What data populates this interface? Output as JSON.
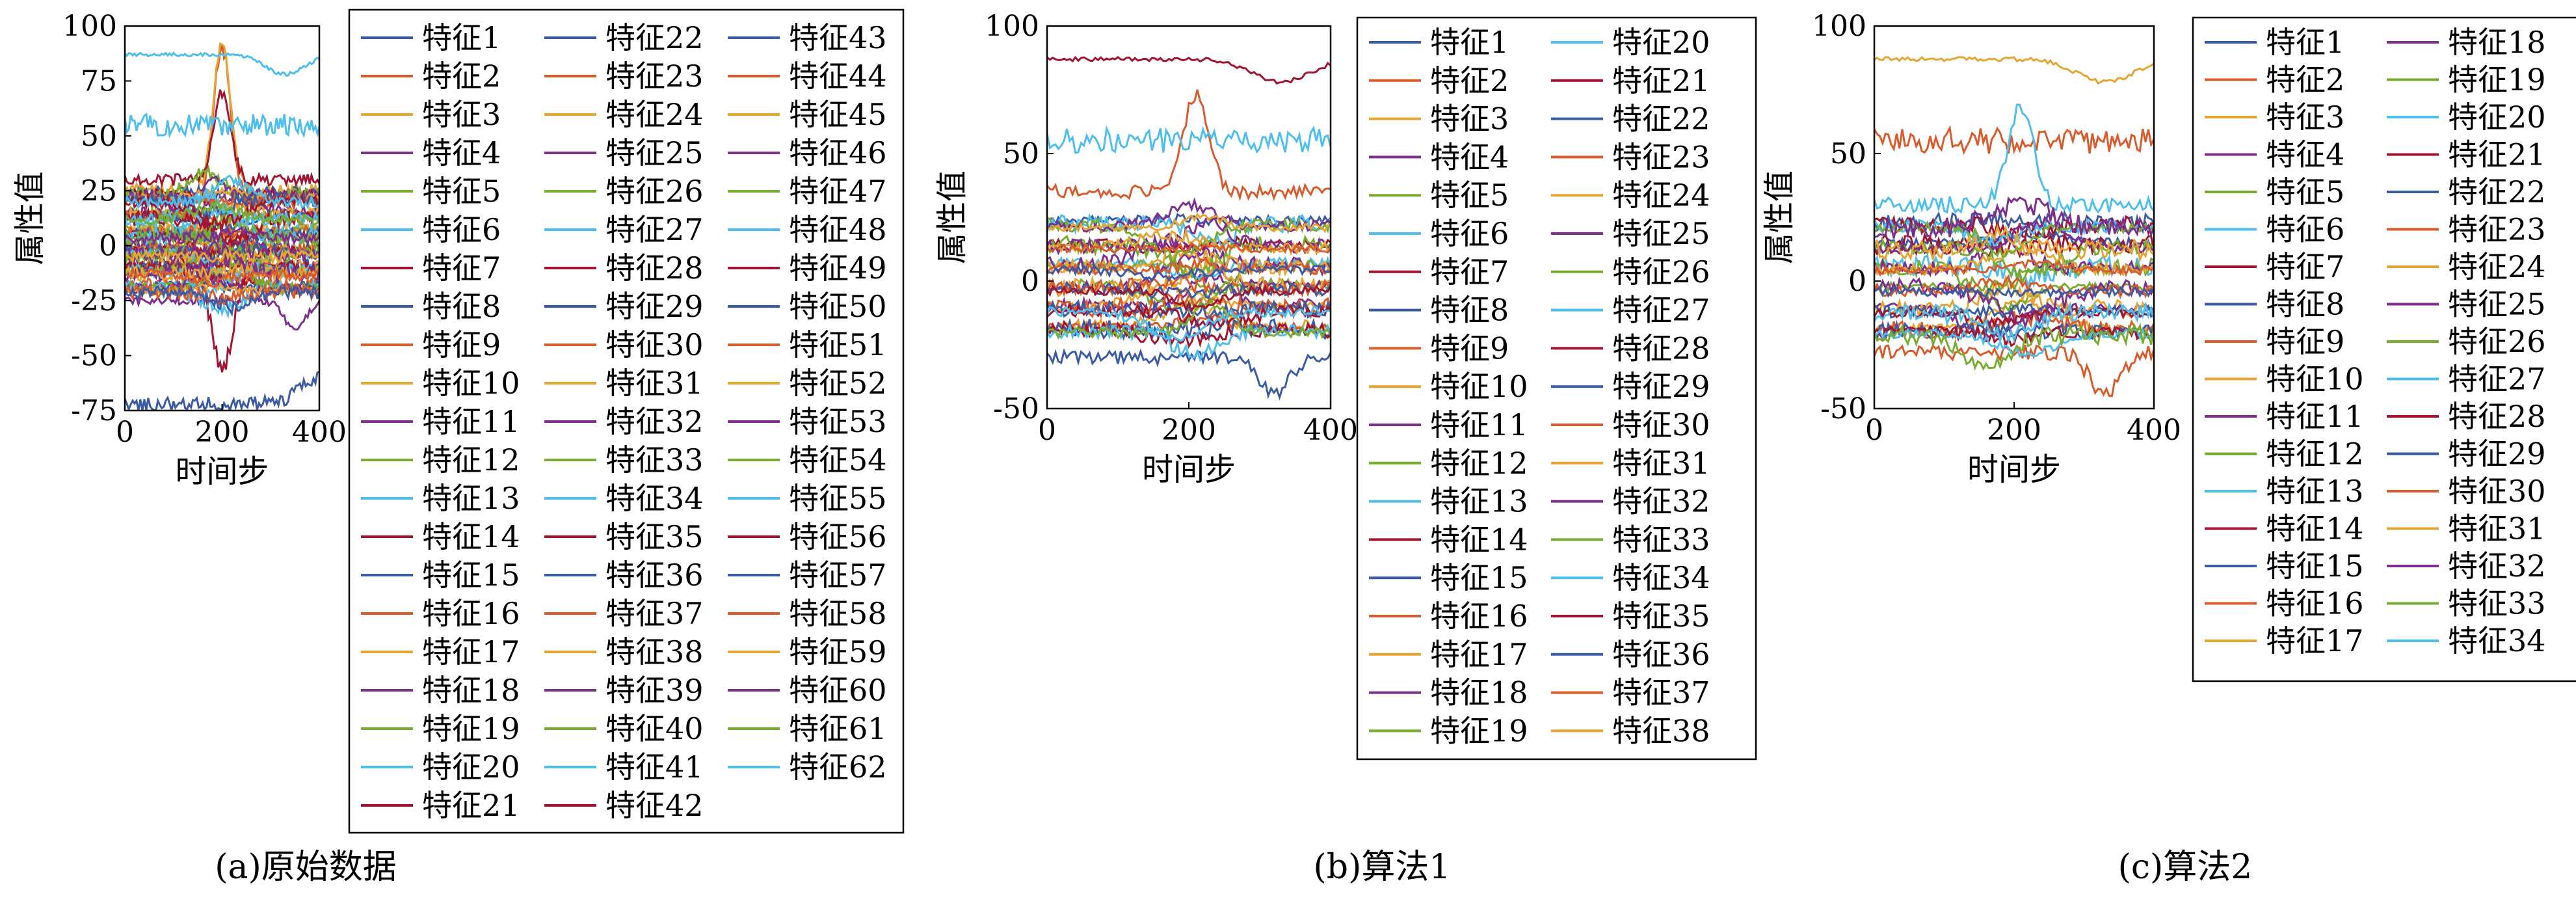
{
  "chart_data": [
    {
      "type": "line",
      "caption": "(a)原始数据",
      "xlabel": "时间步",
      "ylabel": "属性值",
      "xlim": [
        0,
        400
      ],
      "ylim": [
        -75,
        100
      ],
      "xticks": [
        0,
        200,
        400
      ],
      "yticks": [
        -75,
        -50,
        -25,
        0,
        25,
        50,
        75,
        100
      ],
      "x_points": 401,
      "legend_placement": "right",
      "legend_columns": 3,
      "series_count": 62,
      "series_name_prefix": "特征",
      "series_profile": [
        {
          "feature": 1,
          "baseline": -72,
          "pattern": "rise to -60 after step 350"
        },
        {
          "feature": 2,
          "baseline": 20,
          "pattern": "spike to 90 near step 200"
        },
        {
          "feature": 3,
          "baseline": 25,
          "pattern": "spike to 92 near step 200"
        },
        {
          "feature": 7,
          "baseline": 30,
          "pattern": "spike to 70 near step 200, 45 near 300"
        },
        {
          "feature": 13,
          "baseline": 55,
          "pattern": "noisy band 50-60"
        },
        {
          "feature": 20,
          "baseline": 87,
          "pattern": "slow drift 76-88"
        },
        {
          "feature": 21,
          "baseline": -10,
          "pattern": "dip to -56 near step 200"
        },
        {
          "feature": 18,
          "baseline": -25,
          "pattern": "dip to -38 near step 350"
        }
      ]
    },
    {
      "type": "line",
      "caption": "(b)算法1",
      "xlabel": "时间步",
      "ylabel": "属性值",
      "xlim": [
        0,
        400
      ],
      "ylim": [
        -50,
        100
      ],
      "xticks": [
        0,
        200,
        400
      ],
      "yticks": [
        -50,
        0,
        50,
        100
      ],
      "x_points": 401,
      "legend_placement": "right",
      "legend_columns": 2,
      "series_count": 38,
      "series_name_prefix": "特征",
      "series_profile": [
        {
          "feature": 14,
          "baseline": 87,
          "pattern": "slow drift 76-88"
        },
        {
          "feature": 2,
          "baseline": 35,
          "pattern": "spike to 73 near step 210"
        },
        {
          "feature": 13,
          "baseline": 55,
          "pattern": "noisy band 50-62"
        },
        {
          "feature": 1,
          "baseline": -30,
          "pattern": "dip to -44 near step 320"
        }
      ]
    },
    {
      "type": "line",
      "caption": "(c)算法2",
      "xlabel": "时间步",
      "ylabel": "属性值",
      "xlim": [
        0,
        400
      ],
      "ylim": [
        -50,
        100
      ],
      "xticks": [
        0,
        200,
        400
      ],
      "yticks": [
        -50,
        0,
        50,
        100
      ],
      "x_points": 401,
      "legend_placement": "right",
      "legend_columns": 2,
      "series_count": 34,
      "series_name_prefix": "特征",
      "series_profile": [
        {
          "feature": 17,
          "baseline": 87,
          "pattern": "slow drift 76-88"
        },
        {
          "feature": 2,
          "baseline": 55,
          "pattern": "noisy band 45-60"
        },
        {
          "feature": 13,
          "baseline": 30,
          "pattern": "spike to 68 near step 210"
        },
        {
          "feature": 16,
          "baseline": -28,
          "pattern": "dip to -44 near step 330"
        }
      ]
    }
  ],
  "palette": [
    "#3b5ba5",
    "#d95b2c",
    "#e6a533",
    "#7e2f8e",
    "#77ac30",
    "#4dbeee",
    "#a2142f"
  ]
}
